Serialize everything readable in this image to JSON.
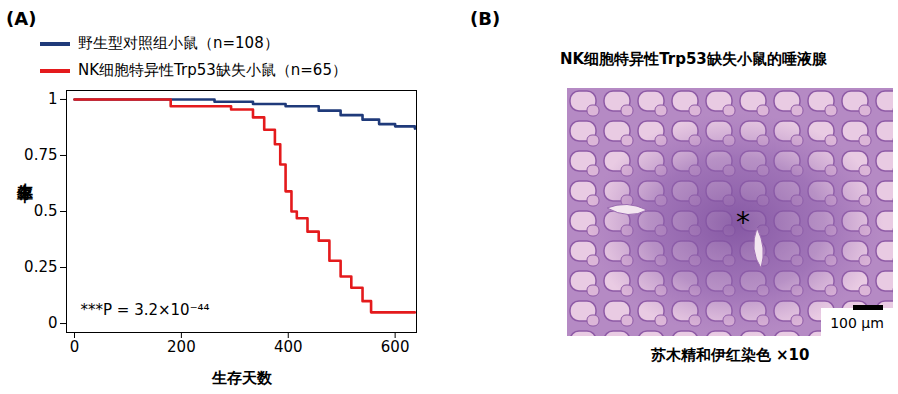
{
  "chart_data": {
    "type": "line",
    "panel_label": "(A)",
    "x_label": "生存天数",
    "y_label": "生存率",
    "xlim": [
      -15,
      640
    ],
    "xticks": [
      0,
      200,
      400,
      600
    ],
    "ylim": [
      -0.04,
      1.04
    ],
    "yticks": [
      0,
      0.25,
      0.5,
      0.75,
      1
    ],
    "line_style": "step",
    "legend": "top-left",
    "annotations": [
      "***P = 3.2×10⁻⁴⁴"
    ],
    "series": [
      {
        "name": "野生型对照组小鼠（n=108）",
        "color": "#1f3a7a",
        "x": [
          0,
          262,
          334,
          395,
          457,
          498,
          539,
          570,
          600,
          637
        ],
        "values": [
          1,
          0.99,
          0.98,
          0.97,
          0.95,
          0.93,
          0.91,
          0.89,
          0.88,
          0.87
        ]
      },
      {
        "name": "NK细胞特异性Trp53缺失小鼠（n=65）",
        "color": "#e41a1c",
        "x": [
          0,
          180,
          293,
          334,
          355,
          375,
          385,
          395,
          406,
          416,
          436,
          457,
          477,
          498,
          518,
          539,
          555,
          637
        ],
        "values": [
          1,
          0.97,
          0.955,
          0.92,
          0.865,
          0.8,
          0.71,
          0.59,
          0.5,
          0.47,
          0.41,
          0.37,
          0.28,
          0.21,
          0.16,
          0.1,
          0.05,
          0.05
        ]
      }
    ]
  },
  "panel_b": {
    "panel_label": "(B)",
    "title": "NK细胞特异性Trp53缺失小鼠的唾液腺",
    "annotation": "*",
    "scale_bar": "100 μm",
    "caption": "苏木精和伊红染色 ×10"
  }
}
